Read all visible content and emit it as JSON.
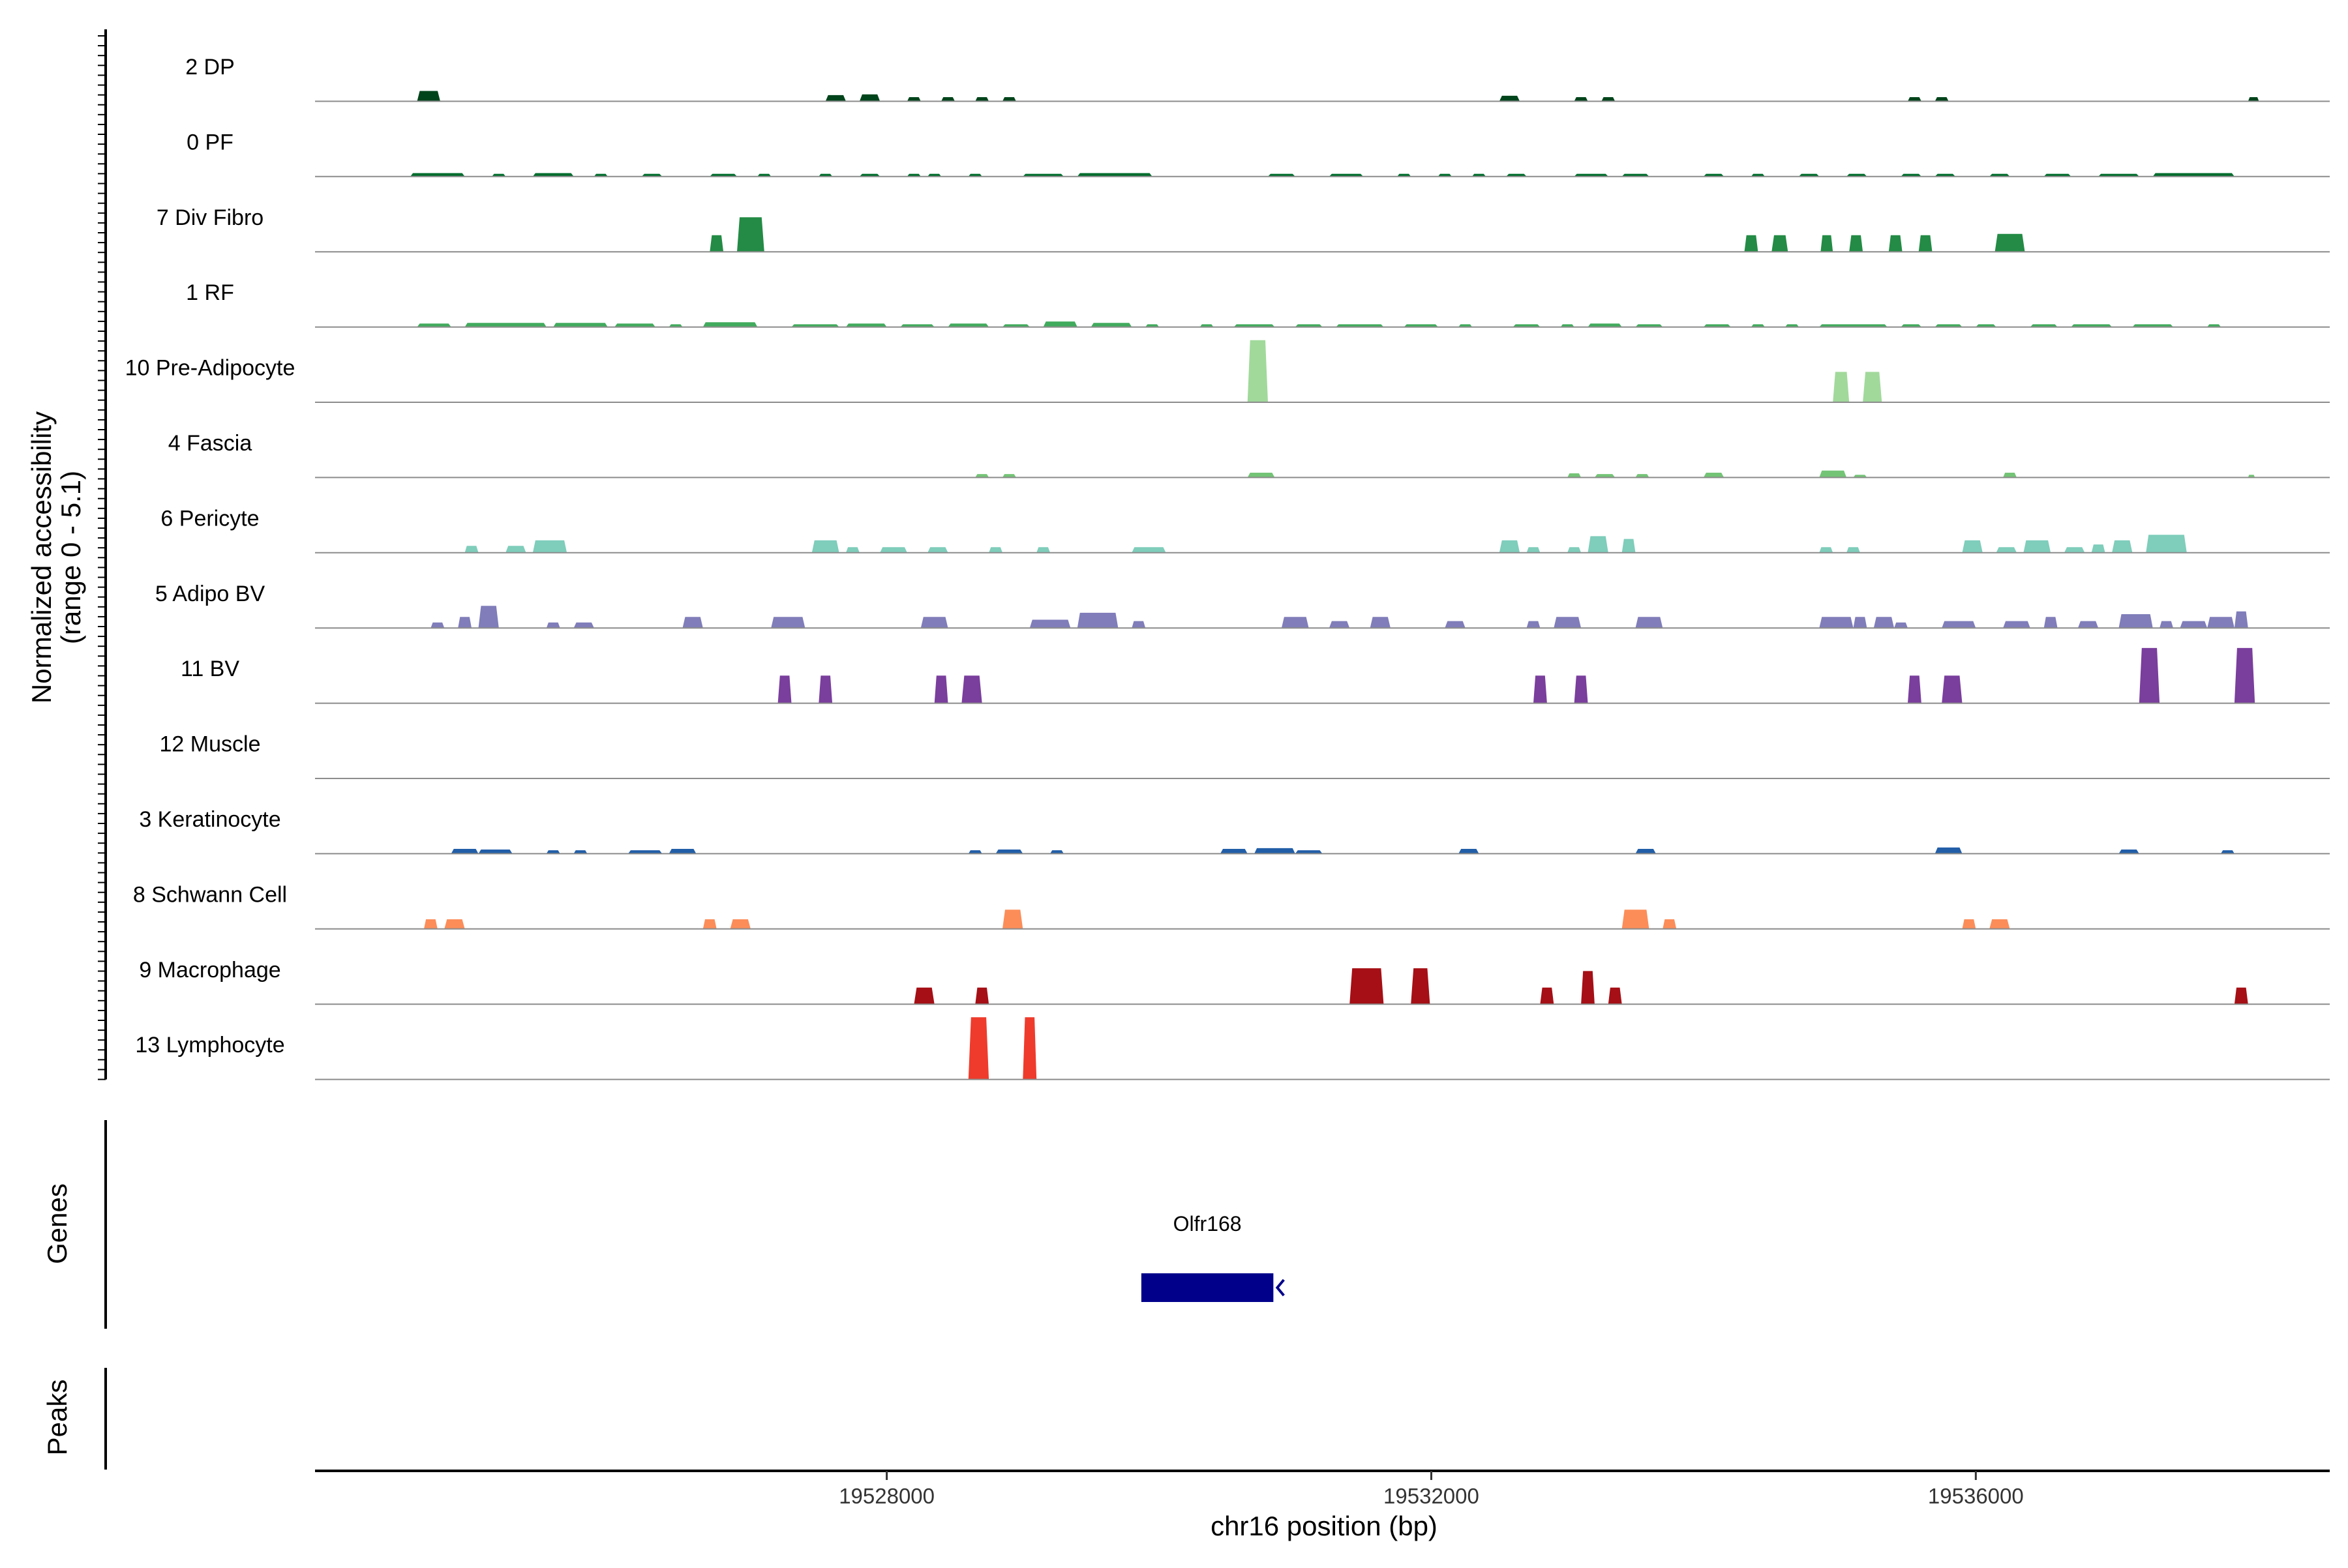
{
  "chart_data": {
    "type": "area",
    "panel_title": "",
    "xlabel": "chr16 position (bp)",
    "ylabel_line1": "Normalized accessibility",
    "ylabel_line2": "(range 0 - 5.1)",
    "xlim": [
      19523800,
      19538600
    ],
    "x_ticks": [
      19528000,
      19532000,
      19536000
    ],
    "x_tick_labels": [
      "19528000",
      "19532000",
      "19536000"
    ],
    "ylim": [
      0,
      5.1
    ],
    "genes_label": "Genes",
    "peaks_label": "Peaks",
    "genes": [
      {
        "name": "Olfr168",
        "start": 19529870,
        "end": 19530840,
        "strand": "-",
        "color": "#00008B"
      }
    ],
    "peaks": [],
    "tracks": [
      {
        "name": "2 DP",
        "color": "#00441B",
        "peaks": [
          [
            19524550,
            19524720,
            0.75
          ],
          [
            19527550,
            19527700,
            0.45
          ],
          [
            19527800,
            19527950,
            0.5
          ],
          [
            19528150,
            19528250,
            0.3
          ],
          [
            19528400,
            19528500,
            0.3
          ],
          [
            19528650,
            19528750,
            0.3
          ],
          [
            19528850,
            19528950,
            0.3
          ],
          [
            19532500,
            19532650,
            0.4
          ],
          [
            19533050,
            19533150,
            0.3
          ],
          [
            19533250,
            19533350,
            0.3
          ],
          [
            19535500,
            19535600,
            0.3
          ],
          [
            19535700,
            19535800,
            0.3
          ],
          [
            19538000,
            19538080,
            0.3
          ]
        ]
      },
      {
        "name": "0 PF",
        "color": "#006D2C",
        "peaks": [
          [
            19524500,
            19524900,
            0.25
          ],
          [
            19525100,
            19525200,
            0.2
          ],
          [
            19525400,
            19525700,
            0.25
          ],
          [
            19525850,
            19525950,
            0.2
          ],
          [
            19526200,
            19526350,
            0.2
          ],
          [
            19526700,
            19526900,
            0.2
          ],
          [
            19527050,
            19527150,
            0.2
          ],
          [
            19527500,
            19527600,
            0.2
          ],
          [
            19527800,
            19527950,
            0.2
          ],
          [
            19528150,
            19528250,
            0.2
          ],
          [
            19528300,
            19528400,
            0.2
          ],
          [
            19528600,
            19528700,
            0.2
          ],
          [
            19529000,
            19529300,
            0.2
          ],
          [
            19529400,
            19529950,
            0.25
          ],
          [
            19530800,
            19531000,
            0.2
          ],
          [
            19531250,
            19531500,
            0.2
          ],
          [
            19531750,
            19531850,
            0.2
          ],
          [
            19532050,
            19532150,
            0.2
          ],
          [
            19532300,
            19532400,
            0.2
          ],
          [
            19532550,
            19532700,
            0.2
          ],
          [
            19533050,
            19533300,
            0.2
          ],
          [
            19533400,
            19533600,
            0.2
          ],
          [
            19534000,
            19534150,
            0.2
          ],
          [
            19534350,
            19534450,
            0.2
          ],
          [
            19534700,
            19534850,
            0.2
          ],
          [
            19535050,
            19535200,
            0.2
          ],
          [
            19535450,
            19535600,
            0.2
          ],
          [
            19535700,
            19535850,
            0.2
          ],
          [
            19536100,
            19536250,
            0.2
          ],
          [
            19536500,
            19536700,
            0.2
          ],
          [
            19536900,
            19537200,
            0.2
          ],
          [
            19537300,
            19537900,
            0.25
          ]
        ]
      },
      {
        "name": "7 Div Fibro",
        "color": "#238B45",
        "peaks": [
          [
            19526700,
            19526800,
            1.2
          ],
          [
            19526900,
            19527100,
            2.5
          ],
          [
            19534300,
            19534400,
            1.2
          ],
          [
            19534500,
            19534620,
            1.2
          ],
          [
            19534860,
            19534950,
            1.2
          ],
          [
            19535070,
            19535170,
            1.2
          ],
          [
            19535360,
            19535460,
            1.2
          ],
          [
            19535580,
            19535680,
            1.2
          ],
          [
            19536140,
            19536360,
            1.3
          ]
        ]
      },
      {
        "name": "1 RF",
        "color": "#41AB5D",
        "peaks": [
          [
            19524550,
            19524800,
            0.25
          ],
          [
            19524900,
            19525500,
            0.3
          ],
          [
            19525550,
            19525950,
            0.3
          ],
          [
            19526000,
            19526300,
            0.25
          ],
          [
            19526400,
            19526500,
            0.2
          ],
          [
            19526650,
            19527050,
            0.35
          ],
          [
            19527300,
            19527650,
            0.2
          ],
          [
            19527700,
            19528000,
            0.25
          ],
          [
            19528100,
            19528350,
            0.2
          ],
          [
            19528450,
            19528750,
            0.25
          ],
          [
            19528850,
            19529050,
            0.2
          ],
          [
            19529150,
            19529400,
            0.4
          ],
          [
            19529500,
            19529800,
            0.3
          ],
          [
            19529900,
            19530000,
            0.2
          ],
          [
            19530300,
            19530400,
            0.2
          ],
          [
            19530550,
            19530850,
            0.2
          ],
          [
            19531000,
            19531200,
            0.2
          ],
          [
            19531300,
            19531650,
            0.2
          ],
          [
            19531800,
            19532050,
            0.2
          ],
          [
            19532200,
            19532300,
            0.2
          ],
          [
            19532600,
            19532800,
            0.2
          ],
          [
            19532950,
            19533050,
            0.2
          ],
          [
            19533150,
            19533400,
            0.25
          ],
          [
            19533500,
            19533700,
            0.2
          ],
          [
            19534000,
            19534200,
            0.2
          ],
          [
            19534350,
            19534450,
            0.2
          ],
          [
            19534600,
            19534700,
            0.2
          ],
          [
            19534850,
            19535350,
            0.2
          ],
          [
            19535450,
            19535600,
            0.2
          ],
          [
            19535700,
            19535900,
            0.2
          ],
          [
            19536000,
            19536150,
            0.2
          ],
          [
            19536400,
            19536600,
            0.2
          ],
          [
            19536700,
            19537000,
            0.2
          ],
          [
            19537150,
            19537450,
            0.2
          ],
          [
            19537700,
            19537800,
            0.2
          ]
        ]
      },
      {
        "name": "10 Pre-Adipocyte",
        "color": "#A1D99B",
        "peaks": [
          [
            19530650,
            19530800,
            4.5
          ],
          [
            19534950,
            19535070,
            2.2
          ],
          [
            19535170,
            19535310,
            2.2
          ]
        ]
      },
      {
        "name": "4 Fascia",
        "color": "#74C476",
        "peaks": [
          [
            19528650,
            19528750,
            0.25
          ],
          [
            19528850,
            19528950,
            0.25
          ],
          [
            19530650,
            19530850,
            0.35
          ],
          [
            19533000,
            19533100,
            0.3
          ],
          [
            19533200,
            19533350,
            0.25
          ],
          [
            19533500,
            19533600,
            0.25
          ],
          [
            19534000,
            19534150,
            0.35
          ],
          [
            19534850,
            19535050,
            0.5
          ],
          [
            19535100,
            19535200,
            0.2
          ],
          [
            19536200,
            19536300,
            0.35
          ],
          [
            19538000,
            19538050,
            0.2
          ]
        ]
      },
      {
        "name": "6 Pericyte",
        "color": "#7FCDBB",
        "peaks": [
          [
            19524900,
            19525000,
            0.5
          ],
          [
            19525200,
            19525350,
            0.5
          ],
          [
            19525400,
            19525650,
            0.9
          ],
          [
            19527450,
            19527650,
            0.9
          ],
          [
            19527700,
            19527800,
            0.4
          ],
          [
            19527950,
            19528150,
            0.4
          ],
          [
            19528300,
            19528450,
            0.4
          ],
          [
            19528750,
            19528850,
            0.4
          ],
          [
            19529100,
            19529200,
            0.4
          ],
          [
            19529800,
            19530050,
            0.4
          ],
          [
            19532500,
            19532650,
            0.9
          ],
          [
            19532700,
            19532800,
            0.4
          ],
          [
            19533000,
            19533100,
            0.4
          ],
          [
            19533150,
            19533300,
            1.2
          ],
          [
            19533400,
            19533500,
            1.0
          ],
          [
            19534850,
            19534950,
            0.4
          ],
          [
            19535050,
            19535150,
            0.4
          ],
          [
            19535900,
            19536050,
            0.9
          ],
          [
            19536150,
            19536300,
            0.4
          ],
          [
            19536350,
            19536550,
            0.9
          ],
          [
            19536650,
            19536800,
            0.4
          ],
          [
            19536850,
            19536950,
            0.6
          ],
          [
            19537000,
            19537150,
            0.9
          ],
          [
            19537250,
            19537550,
            1.3
          ]
        ]
      },
      {
        "name": "5 Adipo BV",
        "color": "#807DBA",
        "peaks": [
          [
            19524650,
            19524750,
            0.4
          ],
          [
            19524850,
            19524950,
            0.8
          ],
          [
            19525000,
            19525150,
            1.6
          ],
          [
            19525500,
            19525600,
            0.4
          ],
          [
            19525700,
            19525850,
            0.4
          ],
          [
            19526500,
            19526650,
            0.8
          ],
          [
            19527150,
            19527400,
            0.8
          ],
          [
            19528250,
            19528450,
            0.8
          ],
          [
            19529050,
            19529350,
            0.6
          ],
          [
            19529400,
            19529700,
            1.1
          ],
          [
            19529800,
            19529900,
            0.5
          ],
          [
            19530900,
            19531100,
            0.8
          ],
          [
            19531250,
            19531400,
            0.5
          ],
          [
            19531550,
            19531700,
            0.8
          ],
          [
            19532100,
            19532250,
            0.5
          ],
          [
            19532700,
            19532800,
            0.5
          ],
          [
            19532900,
            19533100,
            0.8
          ],
          [
            19533500,
            19533700,
            0.8
          ],
          [
            19534850,
            19535100,
            0.8
          ],
          [
            19535100,
            19535200,
            0.8
          ],
          [
            19535250,
            19535400,
            0.8
          ],
          [
            19535400,
            19535500,
            0.4
          ],
          [
            19535750,
            19536000,
            0.5
          ],
          [
            19536200,
            19536400,
            0.5
          ],
          [
            19536500,
            19536600,
            0.8
          ],
          [
            19536750,
            19536900,
            0.5
          ],
          [
            19537050,
            19537300,
            1.0
          ],
          [
            19537350,
            19537450,
            0.5
          ],
          [
            19537500,
            19537700,
            0.5
          ],
          [
            19537700,
            19537900,
            0.8
          ],
          [
            19537900,
            19538000,
            1.2
          ]
        ]
      },
      {
        "name": "11 BV",
        "color": "#7A3E9D",
        "peaks": [
          [
            19527200,
            19527300,
            2.0
          ],
          [
            19527500,
            19527600,
            2.0
          ],
          [
            19528350,
            19528450,
            2.0
          ],
          [
            19528550,
            19528700,
            2.0
          ],
          [
            19532750,
            19532850,
            2.0
          ],
          [
            19533050,
            19533150,
            2.0
          ],
          [
            19535500,
            19535600,
            2.0
          ],
          [
            19535750,
            19535900,
            2.0
          ],
          [
            19537200,
            19537350,
            4.0
          ],
          [
            19537900,
            19538050,
            4.0
          ]
        ]
      },
      {
        "name": "12 Muscle",
        "color": "#6A51A3",
        "peaks": []
      },
      {
        "name": "3 Keratinocyte",
        "color": "#225EA8",
        "peaks": [
          [
            19524800,
            19525000,
            0.35
          ],
          [
            19525000,
            19525250,
            0.3
          ],
          [
            19525500,
            19525600,
            0.25
          ],
          [
            19525700,
            19525800,
            0.25
          ],
          [
            19526100,
            19526350,
            0.25
          ],
          [
            19526400,
            19526600,
            0.35
          ],
          [
            19528600,
            19528700,
            0.25
          ],
          [
            19528800,
            19529000,
            0.3
          ],
          [
            19529200,
            19529300,
            0.25
          ],
          [
            19530450,
            19530650,
            0.35
          ],
          [
            19530700,
            19531000,
            0.4
          ],
          [
            19531000,
            19531200,
            0.25
          ],
          [
            19532200,
            19532350,
            0.35
          ],
          [
            19533500,
            19533650,
            0.35
          ],
          [
            19535700,
            19535900,
            0.45
          ],
          [
            19537050,
            19537200,
            0.3
          ],
          [
            19537800,
            19537900,
            0.25
          ]
        ]
      },
      {
        "name": "8 Schwann Cell",
        "color": "#FC8D59",
        "peaks": [
          [
            19524600,
            19524700,
            0.7
          ],
          [
            19524750,
            19524900,
            0.7
          ],
          [
            19526650,
            19526750,
            0.7
          ],
          [
            19526850,
            19527000,
            0.7
          ],
          [
            19528850,
            19529000,
            1.4
          ],
          [
            19533400,
            19533600,
            1.4
          ],
          [
            19533700,
            19533800,
            0.7
          ],
          [
            19535900,
            19536000,
            0.7
          ],
          [
            19536100,
            19536250,
            0.7
          ]
        ]
      },
      {
        "name": "9 Macrophage",
        "color": "#A50F15",
        "peaks": [
          [
            19528200,
            19528350,
            1.2
          ],
          [
            19528650,
            19528750,
            1.2
          ],
          [
            19531400,
            19531650,
            2.6
          ],
          [
            19531850,
            19531990,
            2.6
          ],
          [
            19532800,
            19532900,
            1.2
          ],
          [
            19533100,
            19533200,
            2.4
          ],
          [
            19533300,
            19533400,
            1.2
          ],
          [
            19537900,
            19538000,
            1.2
          ]
        ]
      },
      {
        "name": "13 Lymphocyte",
        "color": "#EF3B2C",
        "peaks": [
          [
            19528600,
            19528750,
            4.5
          ],
          [
            19529000,
            19529100,
            4.5
          ]
        ]
      }
    ]
  }
}
